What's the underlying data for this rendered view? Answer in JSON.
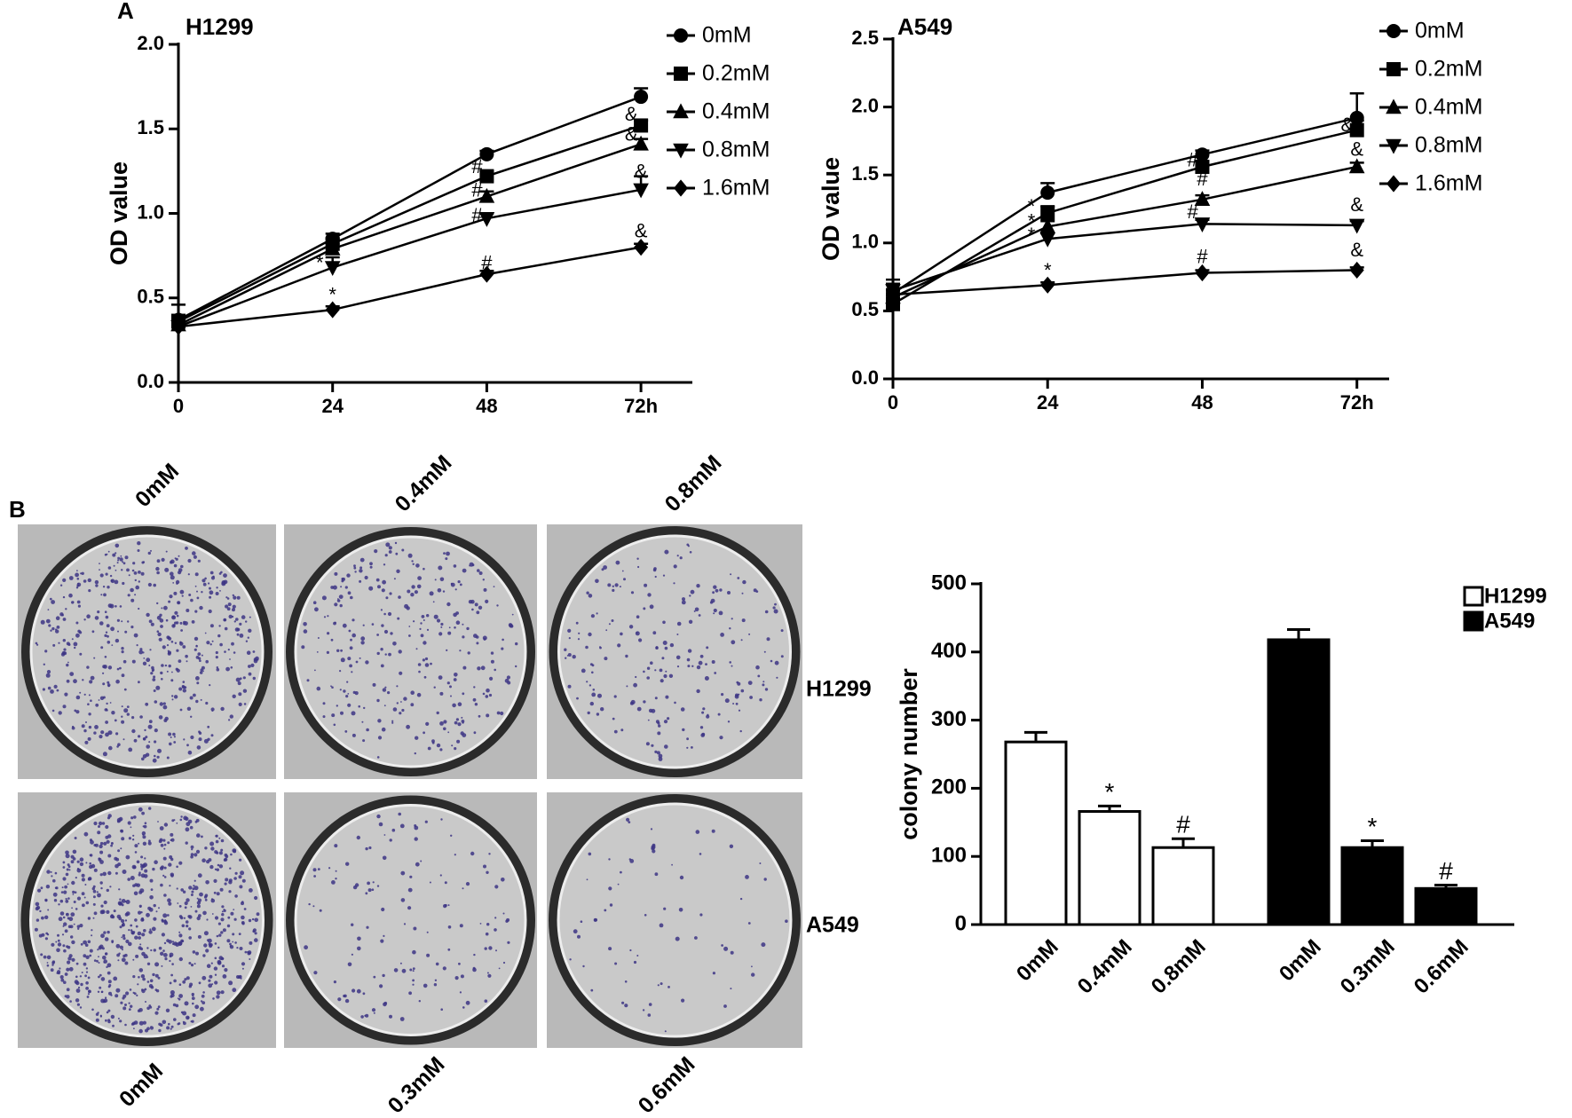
{
  "figure": {
    "panel_a": "A",
    "panel_b": "B",
    "dish_columns_top": [
      "0mM",
      "0.4mM",
      "0.8mM"
    ],
    "dish_columns_bottom": [
      "0mM",
      "0.3mM",
      "0.6mM"
    ],
    "dish_rows": [
      "H1299",
      "A549"
    ]
  },
  "chart_data": [
    {
      "type": "line",
      "title": "H1299",
      "ylabel": "OD value",
      "x": [
        0,
        24,
        48,
        72
      ],
      "xlim": [
        0,
        80
      ],
      "xticks": [
        0,
        24,
        48,
        {
          "value": 72,
          "label": "72h"
        }
      ],
      "ylim": [
        0,
        2.0
      ],
      "yticks": [
        {
          "value": 0,
          "label": "0.0"
        },
        0.5,
        {
          "value": 1.0,
          "label": "1.0"
        },
        1.5,
        {
          "value": 2.0,
          "label": "2.0"
        }
      ],
      "series": [
        {
          "name": "0mM",
          "marker": "circle",
          "color": "#000000",
          "values": [
            0.37,
            0.85,
            1.35,
            1.69
          ],
          "errors": [
            0.09,
            0.03,
            0.02,
            0.05
          ]
        },
        {
          "name": "0.2mM",
          "marker": "square",
          "color": "#000000",
          "values": [
            0.36,
            0.82,
            1.22,
            1.52
          ],
          "errors": [
            0.04,
            0.03,
            0.03,
            0.03
          ]
        },
        {
          "name": "0.4mM",
          "marker": "triangle-up",
          "color": "#000000",
          "values": [
            0.34,
            0.79,
            1.1,
            1.41
          ],
          "errors": [
            0.03,
            0.03,
            0.03,
            0.03
          ]
        },
        {
          "name": "0.8mM",
          "marker": "triangle-down",
          "color": "#000000",
          "values": [
            0.33,
            0.68,
            0.97,
            1.14
          ],
          "errors": [
            0.03,
            0.06,
            0.03,
            0.08
          ]
        },
        {
          "name": "1.6mM",
          "marker": "diamond",
          "color": "#000000",
          "values": [
            0.33,
            0.43,
            0.64,
            0.8
          ],
          "errors": [
            0.03,
            0.02,
            0.02,
            0.02
          ]
        }
      ],
      "annotations": [
        {
          "text": "*",
          "x": 22,
          "y": 0.7
        },
        {
          "text": "*",
          "x": 24,
          "y": 0.51
        },
        {
          "text": "#",
          "x": 46.5,
          "y": 1.27
        },
        {
          "text": "#",
          "x": 46.5,
          "y": 1.13
        },
        {
          "text": "#",
          "x": 46.5,
          "y": 0.98
        },
        {
          "text": "#",
          "x": 48,
          "y": 0.7
        },
        {
          "text": "&",
          "x": 70.5,
          "y": 1.58
        },
        {
          "text": "&",
          "x": 70.5,
          "y": 1.46
        },
        {
          "text": "&",
          "x": 72,
          "y": 1.24
        },
        {
          "text": "&",
          "x": 72,
          "y": 0.89
        }
      ]
    },
    {
      "type": "line",
      "title": "A549",
      "ylabel": "OD value",
      "x": [
        0,
        24,
        48,
        72
      ],
      "xlim": [
        0,
        77
      ],
      "xticks": [
        0,
        24,
        48,
        {
          "value": 72,
          "label": "72h"
        }
      ],
      "ylim": [
        0,
        2.5
      ],
      "yticks": [
        {
          "value": 0,
          "label": "0.0"
        },
        0.5,
        {
          "value": 1.0,
          "label": "1.0"
        },
        1.5,
        {
          "value": 2.0,
          "label": "2.0"
        },
        2.5
      ],
      "series": [
        {
          "name": "0mM",
          "marker": "circle",
          "color": "#000000",
          "values": [
            0.63,
            1.37,
            1.65,
            1.92
          ],
          "errors": [
            0.1,
            0.07,
            0.03,
            0.18
          ]
        },
        {
          "name": "0.2mM",
          "marker": "square",
          "color": "#000000",
          "values": [
            0.55,
            1.22,
            1.56,
            1.83
          ],
          "errors": [
            0.06,
            0.05,
            0.04,
            0.07
          ]
        },
        {
          "name": "0.4mM",
          "marker": "triangle-up",
          "color": "#000000",
          "values": [
            0.6,
            1.12,
            1.32,
            1.56
          ],
          "errors": [
            0.05,
            0.04,
            0.03,
            0.03
          ]
        },
        {
          "name": "0.8mM",
          "marker": "triangle-down",
          "color": "#000000",
          "values": [
            0.65,
            1.03,
            1.14,
            1.13
          ],
          "errors": [
            0.05,
            0.04,
            0.03,
            0.03
          ]
        },
        {
          "name": "1.6mM",
          "marker": "diamond",
          "color": "#000000",
          "values": [
            0.62,
            0.69,
            0.78,
            0.8
          ],
          "errors": [
            0.04,
            0.02,
            0.02,
            0.02
          ]
        }
      ],
      "annotations": [
        {
          "text": "*",
          "x": 21.5,
          "y": 1.26
        },
        {
          "text": "*",
          "x": 21.5,
          "y": 1.15
        },
        {
          "text": "*",
          "x": 21.5,
          "y": 1.05
        },
        {
          "text": "*",
          "x": 24,
          "y": 0.79
        },
        {
          "text": "#",
          "x": 46.5,
          "y": 1.6
        },
        {
          "text": "#",
          "x": 48,
          "y": 1.46
        },
        {
          "text": "#",
          "x": 46.5,
          "y": 1.22
        },
        {
          "text": "#",
          "x": 48,
          "y": 0.89
        },
        {
          "text": "&",
          "x": 70.5,
          "y": 1.86
        },
        {
          "text": "&",
          "x": 72,
          "y": 1.68
        },
        {
          "text": "&",
          "x": 72,
          "y": 1.27
        },
        {
          "text": "&",
          "x": 72,
          "y": 0.94
        }
      ]
    },
    {
      "type": "bar",
      "ylabel": "colony number",
      "categories": [
        "0mM",
        "0.4mM",
        "0.8mM",
        "0mM",
        "0.3mM",
        "0.6mM"
      ],
      "ylim": [
        0,
        500
      ],
      "yticks": [
        0,
        100,
        200,
        300,
        400,
        500
      ],
      "series": [
        {
          "name": "H1299",
          "color": "#ffffff",
          "values": [
            268,
            166,
            113,
            null,
            null,
            null
          ],
          "errors": [
            14,
            8,
            13,
            null,
            null,
            null
          ],
          "significance": [
            null,
            "*",
            "#",
            null,
            null,
            null
          ]
        },
        {
          "name": "A549",
          "color": "#000000",
          "values": [
            null,
            null,
            null,
            418,
            113,
            53
          ],
          "errors": [
            null,
            null,
            null,
            15,
            10,
            5
          ],
          "significance": [
            null,
            null,
            null,
            null,
            "*",
            "#"
          ]
        }
      ]
    }
  ]
}
